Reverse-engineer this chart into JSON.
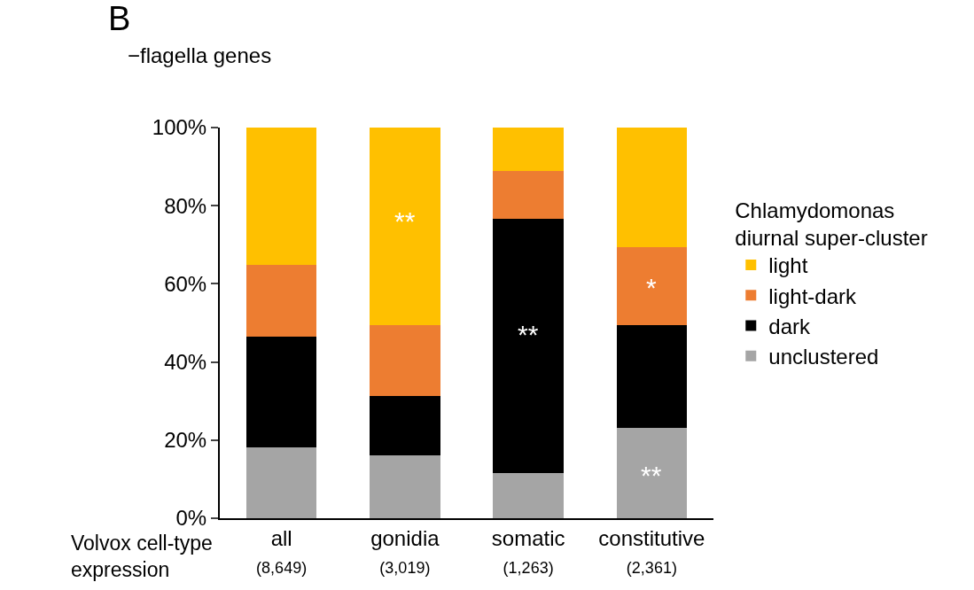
{
  "chart_data": {
    "type": "bar",
    "stacked": true,
    "categories": [
      "all\n(8,649)",
      "gonidia\n(3,019)",
      "somatic\n(1,263)",
      "constitutive\n(2,361)"
    ],
    "series": [
      {
        "name": "unclustered",
        "color": "#a5a5a5",
        "values": [
          18.1,
          16.1,
          11.6,
          23.1
        ]
      },
      {
        "name": "dark",
        "color": "#000000",
        "values": [
          28.4,
          15.2,
          65.0,
          26.3
        ]
      },
      {
        "name": "light-dark",
        "color": "#ed7d31",
        "values": [
          18.4,
          18.1,
          12.3,
          20.0
        ]
      },
      {
        "name": "light",
        "color": "#ffc000",
        "values": [
          35.1,
          50.6,
          11.1,
          30.6
        ]
      }
    ],
    "ylim": [
      0,
      100
    ],
    "yticks": [
      {
        "value": 0,
        "label": "0%"
      },
      {
        "value": 20,
        "label": "20%"
      },
      {
        "value": 40,
        "label": "40%"
      },
      {
        "value": 60,
        "label": "60%"
      },
      {
        "value": 80,
        "label": "80%"
      },
      {
        "value": 100,
        "label": "100%"
      }
    ],
    "xlabel": "Volvox cell-type\nexpression",
    "legend_title": "Chlamydomonas\ndiurnal super-cluster",
    "legend": "right",
    "grid": false,
    "annotations": [
      "B",
      "−flagella genes",
      "**",
      "**",
      "*",
      "**"
    ]
  }
}
